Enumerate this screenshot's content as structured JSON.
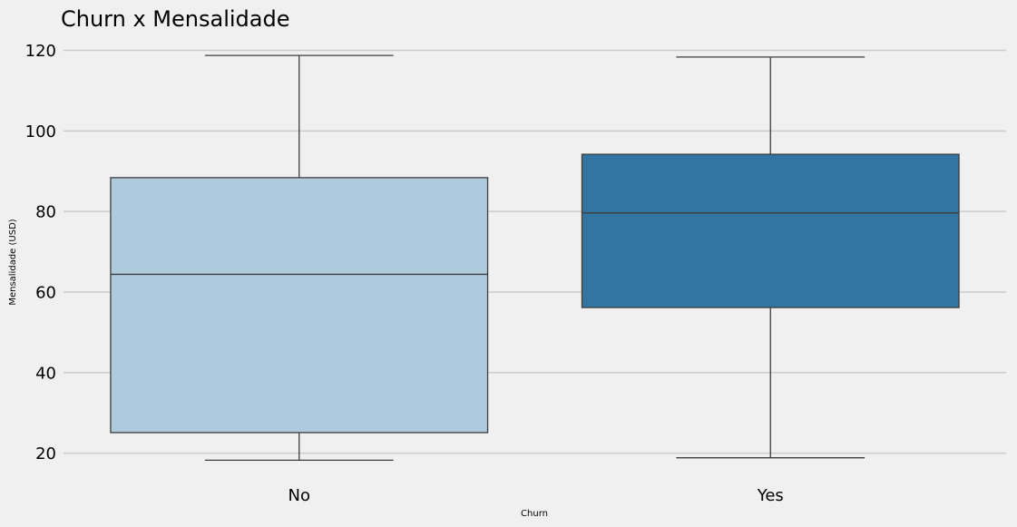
{
  "chart_data": {
    "type": "box",
    "title": "Churn x Mensalidade",
    "xlabel": "Churn",
    "ylabel": "Mensalidade (USD)",
    "ylim": [
      14.5,
      123.5
    ],
    "yticks": [
      20,
      40,
      60,
      80,
      100,
      120
    ],
    "grid": "horizontal",
    "categories": [
      "No",
      "Yes"
    ],
    "boxes": [
      {
        "category": "No",
        "whisker_low": 18.25,
        "q1": 25.1,
        "median": 64.4,
        "q3": 88.4,
        "whisker_high": 118.75,
        "color": "#aecbde"
      },
      {
        "category": "Yes",
        "whisker_low": 18.85,
        "q1": 56.15,
        "median": 79.65,
        "q3": 94.2,
        "whisker_high": 118.35,
        "color": "#3274a2"
      }
    ]
  },
  "colors": {
    "background": "#f0f0f0",
    "grid": "#cbcbcb",
    "edge": "#3d3d3d"
  }
}
